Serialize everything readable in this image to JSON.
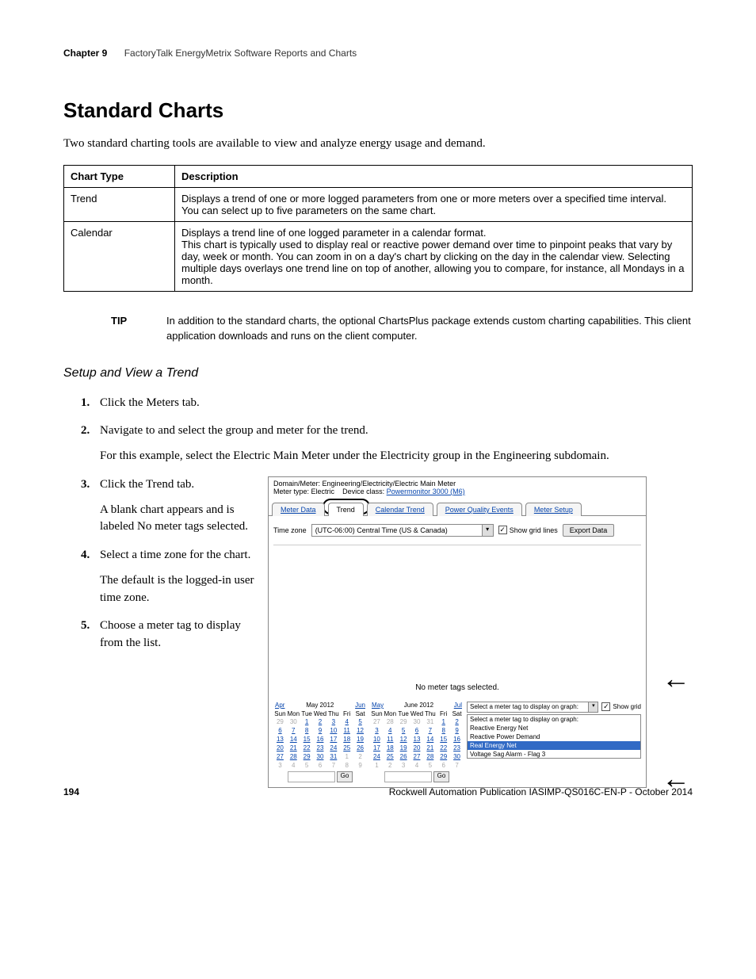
{
  "header": {
    "chapter": "Chapter 9",
    "chapter_title": "FactoryTalk EnergyMetrix Software Reports and Charts"
  },
  "section_title": "Standard Charts",
  "lead": "Two standard charting tools are available to view and analyze energy usage and demand.",
  "table": {
    "headers": [
      "Chart Type",
      "Description"
    ],
    "rows": [
      {
        "type": "Trend",
        "desc": "Displays a trend of one or more logged parameters from one or more meters over a specified time interval. You can select up to five parameters on the same chart."
      },
      {
        "type": "Calendar",
        "desc": "Displays a trend line of one logged parameter in a calendar format.\nThis chart is typically used to display real or reactive power demand over time to pinpoint peaks that vary by day, week or month. You can zoom in on a day's chart by clicking on the day in the calendar view. Selecting multiple days overlays one trend line on top of another, allowing you to compare, for instance, all Mondays in a month."
      }
    ]
  },
  "tip": {
    "label": "TIP",
    "text": "In addition to the standard charts, the optional ChartsPlus package extends custom charting capabilities. This client application downloads and runs on the client computer."
  },
  "subsection": "Setup and View a Trend",
  "steps": {
    "s1": "Click the Meters tab.",
    "s2": "Navigate to and select the group and meter for the trend.",
    "s2b": "For this example, select the Electric Main Meter under the Electricity group in the Engineering subdomain.",
    "s3": "Click the Trend tab.",
    "s3b": "A blank chart appears and is labeled No meter tags selected.",
    "s4": "Select a time zone for the chart.",
    "s4b": "The default is the logged-in user time zone.",
    "s5": "Choose a meter tag to display from the list."
  },
  "screenshot": {
    "path_label": "Domain/Meter:",
    "path": "Engineering/Electricity/Electric Main Meter",
    "meter_type_label": "Meter type:",
    "meter_type": "Electric",
    "device_class_label": "Device class:",
    "device_class": "Powermonitor 3000 (M6)",
    "tabs": [
      "Meter Data",
      "Trend",
      "Calendar Trend",
      "Power Quality Events",
      "Meter Setup"
    ],
    "active_tab_index": 1,
    "timezone_label": "Time zone",
    "timezone_value": "(UTC-06:00) Central Time (US & Canada)",
    "show_grid_label": "Show grid lines",
    "show_grid_checked": true,
    "export_button": "Export Data",
    "chart_msg": "No meter tags selected.",
    "cal_left": {
      "prev": "Apr",
      "month": "May 2012",
      "next": "Jun",
      "dow": [
        "Sun",
        "Mon",
        "Tue",
        "Wed",
        "Thu",
        "Fri",
        "Sat"
      ],
      "weeks": [
        [
          {
            "n": "29",
            "dim": true
          },
          {
            "n": "30",
            "dim": true
          },
          {
            "n": "1"
          },
          {
            "n": "2"
          },
          {
            "n": "3"
          },
          {
            "n": "4"
          },
          {
            "n": "5"
          }
        ],
        [
          {
            "n": "6"
          },
          {
            "n": "7"
          },
          {
            "n": "8"
          },
          {
            "n": "9"
          },
          {
            "n": "10"
          },
          {
            "n": "11"
          },
          {
            "n": "12"
          }
        ],
        [
          {
            "n": "13"
          },
          {
            "n": "14"
          },
          {
            "n": "15"
          },
          {
            "n": "16"
          },
          {
            "n": "17"
          },
          {
            "n": "18"
          },
          {
            "n": "19"
          }
        ],
        [
          {
            "n": "20"
          },
          {
            "n": "21"
          },
          {
            "n": "22"
          },
          {
            "n": "23"
          },
          {
            "n": "24"
          },
          {
            "n": "25"
          },
          {
            "n": "26"
          }
        ],
        [
          {
            "n": "27"
          },
          {
            "n": "28"
          },
          {
            "n": "29"
          },
          {
            "n": "30"
          },
          {
            "n": "31"
          },
          {
            "n": "1",
            "dim": true
          },
          {
            "n": "2",
            "dim": true
          }
        ],
        [
          {
            "n": "3",
            "dim": true
          },
          {
            "n": "4",
            "dim": true
          },
          {
            "n": "5",
            "dim": true
          },
          {
            "n": "6",
            "dim": true
          },
          {
            "n": "7",
            "dim": true
          },
          {
            "n": "8",
            "dim": true
          },
          {
            "n": "9",
            "dim": true
          }
        ]
      ],
      "go": "Go"
    },
    "cal_right": {
      "prev": "May",
      "month": "June 2012",
      "next": "Jul",
      "dow": [
        "Sun",
        "Mon",
        "Tue",
        "Wed",
        "Thu",
        "Fri",
        "Sat"
      ],
      "weeks": [
        [
          {
            "n": "27",
            "dim": true
          },
          {
            "n": "28",
            "dim": true
          },
          {
            "n": "29",
            "dim": true
          },
          {
            "n": "30",
            "dim": true
          },
          {
            "n": "31",
            "dim": true
          },
          {
            "n": "1"
          },
          {
            "n": "2"
          }
        ],
        [
          {
            "n": "3"
          },
          {
            "n": "4"
          },
          {
            "n": "5"
          },
          {
            "n": "6"
          },
          {
            "n": "7"
          },
          {
            "n": "8"
          },
          {
            "n": "9"
          }
        ],
        [
          {
            "n": "10"
          },
          {
            "n": "11"
          },
          {
            "n": "12"
          },
          {
            "n": "13"
          },
          {
            "n": "14"
          },
          {
            "n": "15"
          },
          {
            "n": "16"
          }
        ],
        [
          {
            "n": "17"
          },
          {
            "n": "18"
          },
          {
            "n": "19"
          },
          {
            "n": "20"
          },
          {
            "n": "21"
          },
          {
            "n": "22"
          },
          {
            "n": "23"
          }
        ],
        [
          {
            "n": "24"
          },
          {
            "n": "25"
          },
          {
            "n": "26"
          },
          {
            "n": "27"
          },
          {
            "n": "28"
          },
          {
            "n": "29"
          },
          {
            "n": "30"
          }
        ],
        [
          {
            "n": "1",
            "dim": true
          },
          {
            "n": "2",
            "dim": true
          },
          {
            "n": "3",
            "dim": true
          },
          {
            "n": "4",
            "dim": true
          },
          {
            "n": "5",
            "dim": true
          },
          {
            "n": "6",
            "dim": true
          },
          {
            "n": "7",
            "dim": true
          }
        ]
      ],
      "go": "Go"
    },
    "tag_select_label": "Select a meter tag to display on graph:",
    "show_grid2_label": "Show grid",
    "show_grid2_checked": true,
    "tag_list": [
      {
        "t": "Select a meter tag to display on graph:"
      },
      {
        "t": "Reactive Energy Net"
      },
      {
        "t": "Reactive Power Demand"
      },
      {
        "t": "Real Energy Net",
        "hi": true
      },
      {
        "t": "Voltage Sag Alarm - Flag 3"
      }
    ]
  },
  "footer": {
    "page": "194",
    "pub": "Rockwell Automation Publication IASIMP-QS016C-EN-P - October 2014"
  },
  "colors": {
    "link": "#0645ad",
    "highlight_bg": "#316ac5",
    "highlight_fg": "#ffffff"
  }
}
